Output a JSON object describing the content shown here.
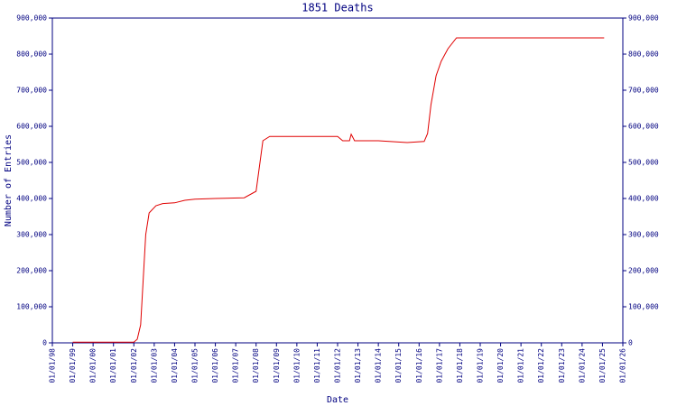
{
  "chart_data": {
    "type": "line",
    "title": "1851 Deaths",
    "x_label": "Date",
    "y_label": "Number of Entries",
    "x": [
      "1999-01",
      "2002-01",
      "2002-03",
      "2002-05",
      "2002-08",
      "2002-10",
      "2003-02",
      "2003-06",
      "2004-01",
      "2004-07",
      "2005-01",
      "2006-01",
      "2007-06",
      "2008-01",
      "2008-05",
      "2008-09",
      "2012-01",
      "2012-04",
      "2012-08",
      "2012-09",
      "2012-11",
      "2014-01",
      "2015-06",
      "2016-04",
      "2016-06",
      "2016-08",
      "2016-11",
      "2017-02",
      "2017-06",
      "2017-11",
      "2025-02"
    ],
    "series": [
      {
        "name": "1851 Deaths",
        "color": "#e00000",
        "values": [
          2000,
          2000,
          10000,
          50000,
          300000,
          360000,
          380000,
          386000,
          388000,
          395000,
          398000,
          400000,
          402000,
          420000,
          560000,
          572000,
          572000,
          560000,
          560000,
          578000,
          560000,
          560000,
          555000,
          558000,
          580000,
          660000,
          740000,
          780000,
          815000,
          845000,
          845000
        ]
      }
    ],
    "xlim": [
      "1998-01",
      "2026-01"
    ],
    "xticks": [
      {
        "value": "1998-01",
        "label": "01/01/98"
      },
      {
        "value": "1999-01",
        "label": "01/01/99"
      },
      {
        "value": "2000-01",
        "label": "01/01/00"
      },
      {
        "value": "2001-01",
        "label": "01/01/01"
      },
      {
        "value": "2002-01",
        "label": "01/01/02"
      },
      {
        "value": "2003-01",
        "label": "01/01/03"
      },
      {
        "value": "2004-01",
        "label": "01/01/04"
      },
      {
        "value": "2005-01",
        "label": "01/01/05"
      },
      {
        "value": "2006-01",
        "label": "01/01/06"
      },
      {
        "value": "2007-01",
        "label": "01/01/07"
      },
      {
        "value": "2008-01",
        "label": "01/01/08"
      },
      {
        "value": "2009-01",
        "label": "01/01/09"
      },
      {
        "value": "2010-01",
        "label": "01/01/10"
      },
      {
        "value": "2011-01",
        "label": "01/01/11"
      },
      {
        "value": "2012-01",
        "label": "01/01/12"
      },
      {
        "value": "2013-01",
        "label": "01/01/13"
      },
      {
        "value": "2014-01",
        "label": "01/01/14"
      },
      {
        "value": "2015-01",
        "label": "01/01/15"
      },
      {
        "value": "2016-01",
        "label": "01/01/16"
      },
      {
        "value": "2017-01",
        "label": "01/01/17"
      },
      {
        "value": "2018-01",
        "label": "01/01/18"
      },
      {
        "value": "2019-01",
        "label": "01/01/19"
      },
      {
        "value": "2020-01",
        "label": "01/01/20"
      },
      {
        "value": "2021-01",
        "label": "01/01/21"
      },
      {
        "value": "2022-01",
        "label": "01/01/22"
      },
      {
        "value": "2023-01",
        "label": "01/01/23"
      },
      {
        "value": "2024-01",
        "label": "01/01/24"
      },
      {
        "value": "2025-01",
        "label": "01/01/25"
      },
      {
        "value": "2026-01",
        "label": "01/01/26"
      }
    ],
    "ylim": [
      0,
      900000
    ],
    "yticks": [
      0,
      {
        "value": 100000,
        "label": "100,000"
      },
      {
        "value": 200000,
        "label": "200,000"
      },
      {
        "value": 300000,
        "label": "300,000"
      },
      {
        "value": 400000,
        "label": "400,000"
      },
      {
        "value": 500000,
        "label": "500,000"
      },
      {
        "value": 600000,
        "label": "600,000"
      },
      {
        "value": 700000,
        "label": "700,000"
      },
      {
        "value": 800000,
        "label": "800,000"
      },
      {
        "value": 900000,
        "label": "900,000"
      }
    ],
    "axis_color": "#000080"
  }
}
